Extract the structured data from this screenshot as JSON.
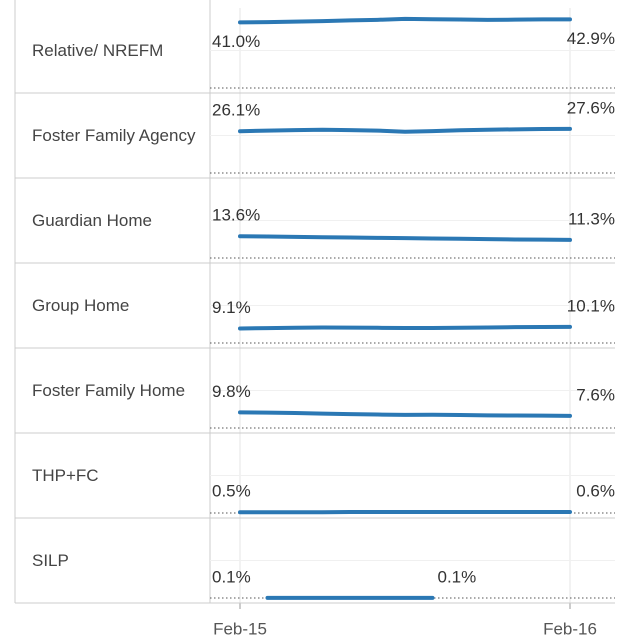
{
  "chart_data": {
    "type": "line",
    "layout": "small-multiples",
    "x": [
      "Feb-15",
      null,
      null,
      null,
      null,
      null,
      null,
      null,
      null,
      null,
      null,
      null,
      "Feb-16"
    ],
    "ylim": [
      0,
      45
    ],
    "color": "#2b78b4",
    "series": [
      {
        "name": "Relative/ NREFM",
        "values": [
          41.0,
          41.2,
          41.5,
          41.8,
          42.3,
          42.6,
          43.2,
          43.0,
          42.8,
          42.6,
          42.7,
          42.9,
          42.9
        ],
        "value_labels": [
          "41.0%",
          null,
          null,
          null,
          null,
          null,
          null,
          null,
          null,
          null,
          null,
          null,
          "42.9%"
        ]
      },
      {
        "name": "Foster Family Agency",
        "values": [
          26.1,
          26.5,
          26.8,
          27.0,
          26.8,
          26.5,
          25.8,
          26.2,
          26.7,
          27.0,
          27.3,
          27.5,
          27.6
        ],
        "value_labels": [
          "26.1%",
          null,
          null,
          null,
          null,
          null,
          null,
          null,
          null,
          null,
          null,
          null,
          "27.6%"
        ]
      },
      {
        "name": "Guardian Home",
        "values": [
          13.6,
          13.4,
          13.2,
          13.0,
          12.8,
          12.6,
          12.4,
          12.2,
          12.0,
          11.8,
          11.6,
          11.5,
          11.3
        ],
        "value_labels": [
          "13.6%",
          null,
          null,
          null,
          null,
          null,
          null,
          null,
          null,
          null,
          null,
          null,
          "11.3%"
        ]
      },
      {
        "name": "Group Home",
        "values": [
          9.1,
          9.3,
          9.5,
          9.7,
          9.6,
          9.5,
          9.4,
          9.4,
          9.5,
          9.7,
          9.9,
          10.0,
          10.1
        ],
        "value_labels": [
          "9.1%",
          null,
          null,
          null,
          null,
          null,
          null,
          null,
          null,
          null,
          null,
          null,
          "10.1%"
        ]
      },
      {
        "name": "Foster Family Home",
        "values": [
          9.8,
          9.6,
          9.4,
          9.0,
          8.7,
          8.4,
          8.2,
          8.3,
          8.1,
          7.9,
          7.8,
          7.7,
          7.6
        ],
        "value_labels": [
          "9.8%",
          null,
          null,
          null,
          null,
          null,
          null,
          null,
          null,
          null,
          null,
          null,
          "7.6%"
        ]
      },
      {
        "name": "THP+FC",
        "values": [
          0.5,
          0.5,
          0.5,
          0.5,
          0.6,
          0.6,
          0.6,
          0.6,
          0.6,
          0.6,
          0.6,
          0.6,
          0.6
        ],
        "value_labels": [
          "0.5%",
          null,
          null,
          null,
          null,
          null,
          null,
          null,
          null,
          null,
          null,
          null,
          "0.6%"
        ]
      },
      {
        "name": "SILP",
        "values": [
          null,
          0.1,
          0.1,
          0.1,
          0.1,
          0.1,
          0.1,
          0.1,
          null,
          null,
          null,
          null,
          null
        ],
        "value_labels": [
          null,
          "0.1%",
          null,
          null,
          null,
          null,
          null,
          "0.1%",
          null,
          null,
          null,
          null,
          null
        ]
      }
    ]
  }
}
